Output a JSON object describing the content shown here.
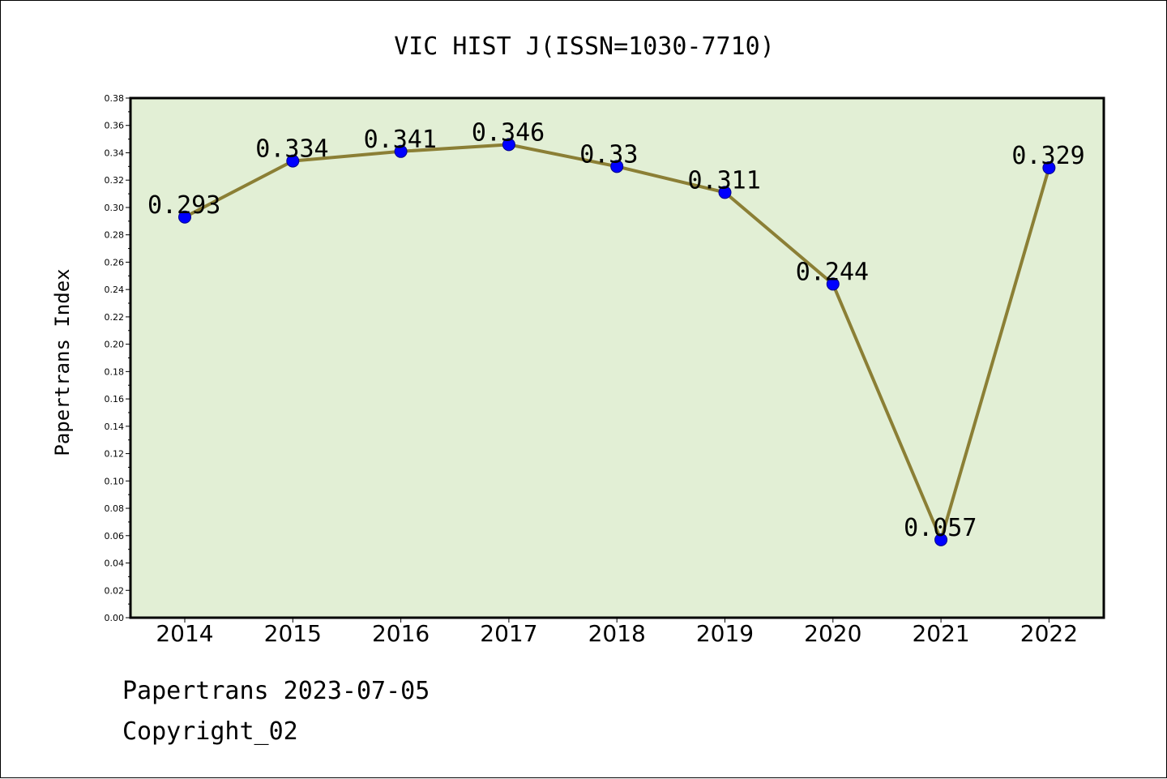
{
  "chart_data": {
    "type": "line",
    "title": "VIC HIST J(ISSN=1030-7710)",
    "xlabel": "",
    "ylabel": "Papertrans Index",
    "categories": [
      "2014",
      "2015",
      "2016",
      "2017",
      "2018",
      "2019",
      "2020",
      "2021",
      "2022"
    ],
    "series": [
      {
        "values": [
          0.293,
          0.334,
          0.341,
          0.346,
          0.33,
          0.311,
          0.244,
          0.057,
          0.329
        ],
        "labels": [
          "0.293",
          "0.334",
          "0.341",
          "0.346",
          "0.33",
          "0.311",
          "0.244",
          "0.057",
          "0.329"
        ]
      }
    ],
    "ylim": [
      0.0,
      0.38
    ],
    "yticks": [
      "0.00",
      "0.02",
      "0.04",
      "0.06",
      "0.08",
      "0.10",
      "0.12",
      "0.14",
      "0.16",
      "0.18",
      "0.20",
      "0.22",
      "0.24",
      "0.26",
      "0.28",
      "0.30",
      "0.32",
      "0.34",
      "0.36",
      "0.38"
    ],
    "grid": false,
    "colors": {
      "plot_background": "#e2efd5",
      "line": "#8b7f35",
      "marker": "#0000ff"
    }
  },
  "footer": {
    "line1": "Papertrans 2023-07-05",
    "line2": "Copyright_02"
  }
}
